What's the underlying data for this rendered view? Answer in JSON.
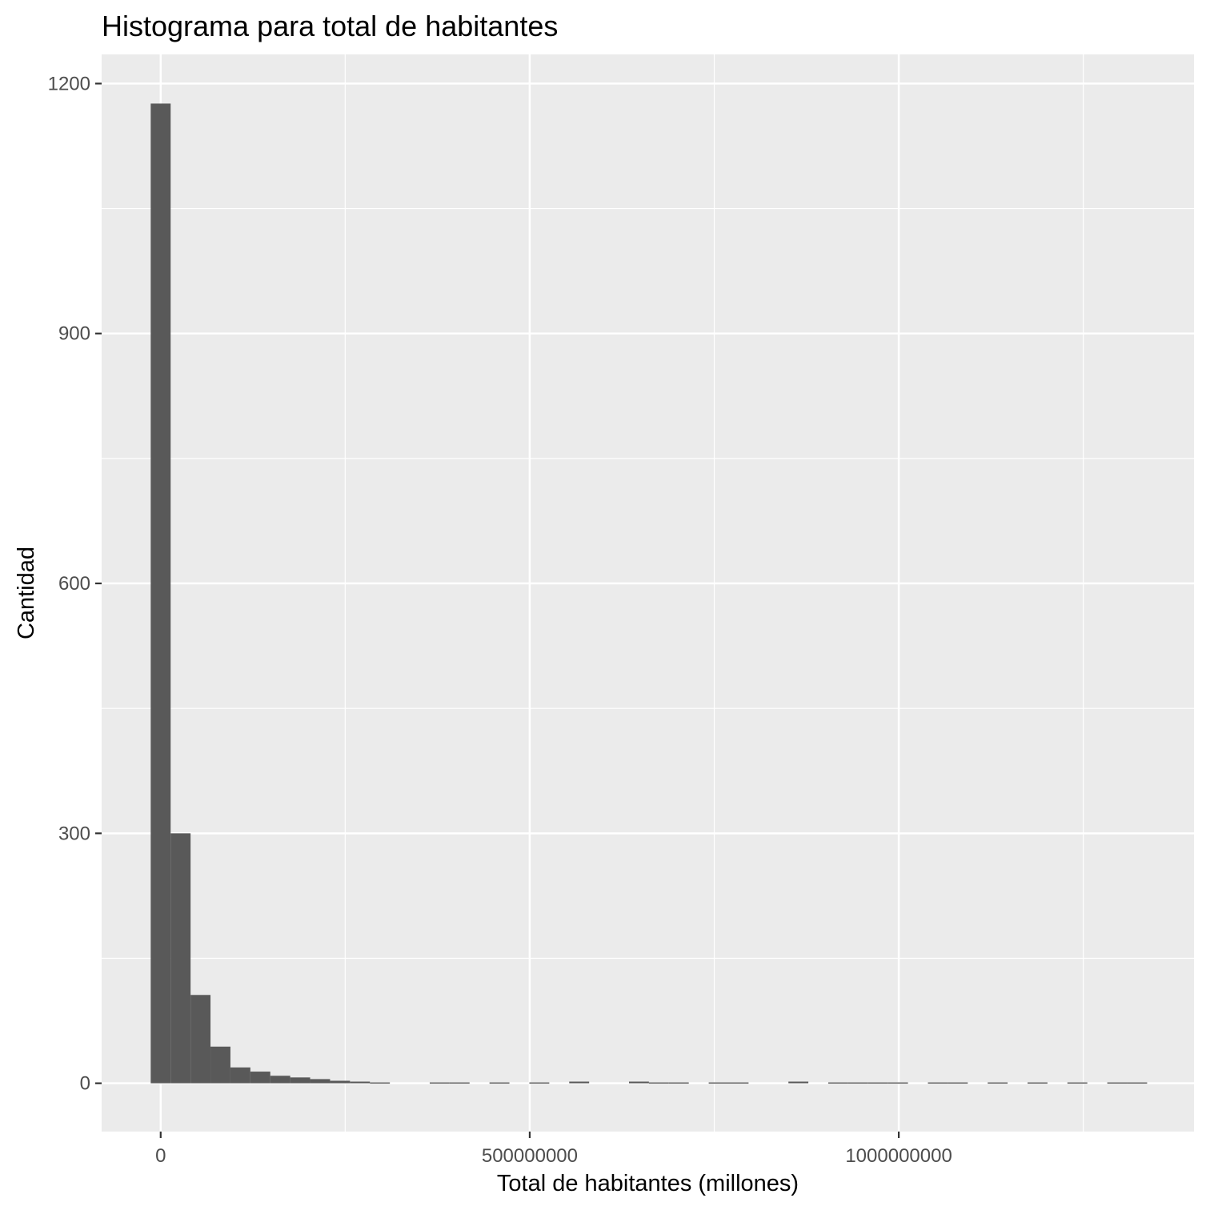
{
  "chart_data": {
    "type": "bar",
    "title": "Histograma para total de habitantes",
    "xlabel": "Total de habitantes (millones)",
    "ylabel": "Cantidad",
    "xlim": [
      -80000000,
      1400000000
    ],
    "ylim": [
      -58,
      1235
    ],
    "x_ticks": [
      0,
      500000000,
      1000000000
    ],
    "x_tick_labels": [
      "0",
      "500000000",
      "1000000000"
    ],
    "y_ticks": [
      0,
      300,
      600,
      900,
      1200
    ],
    "y_tick_labels": [
      "0",
      "300",
      "600",
      "900",
      "1200"
    ],
    "bin_width": 27000000,
    "bins_start": [
      -13500000,
      13500000,
      40500000,
      67500000,
      94500000,
      121500000,
      148500000,
      175500000,
      202500000,
      229500000,
      256500000,
      283500000,
      310500000,
      337500000,
      364500000,
      391500000,
      418500000,
      445500000,
      472500000,
      499500000,
      526500000,
      553500000,
      580500000,
      607500000,
      634500000,
      661500000,
      688500000,
      715500000,
      742500000,
      769500000,
      796500000,
      823500000,
      850500000,
      877500000,
      904500000,
      931500000,
      958500000,
      985500000,
      1012500000,
      1039500000,
      1066500000,
      1093500000,
      1120500000,
      1147500000,
      1174500000,
      1201500000,
      1228500000,
      1255500000,
      1282500000,
      1309500000
    ],
    "values": [
      1176,
      300,
      106,
      44,
      19,
      14,
      9,
      7,
      5,
      3,
      2,
      1,
      0,
      0,
      1,
      1,
      0,
      1,
      0,
      1,
      0,
      2,
      0,
      0,
      2,
      1,
      1,
      0,
      1,
      1,
      0,
      0,
      2,
      0,
      1,
      1,
      1,
      1,
      0,
      1,
      1,
      0,
      1,
      0,
      1,
      0,
      1,
      0,
      1,
      1
    ],
    "grid": true,
    "legend": "none",
    "bar_color": "#595959",
    "panel_color": "#ebebeb",
    "grid_color": "#ffffff"
  }
}
